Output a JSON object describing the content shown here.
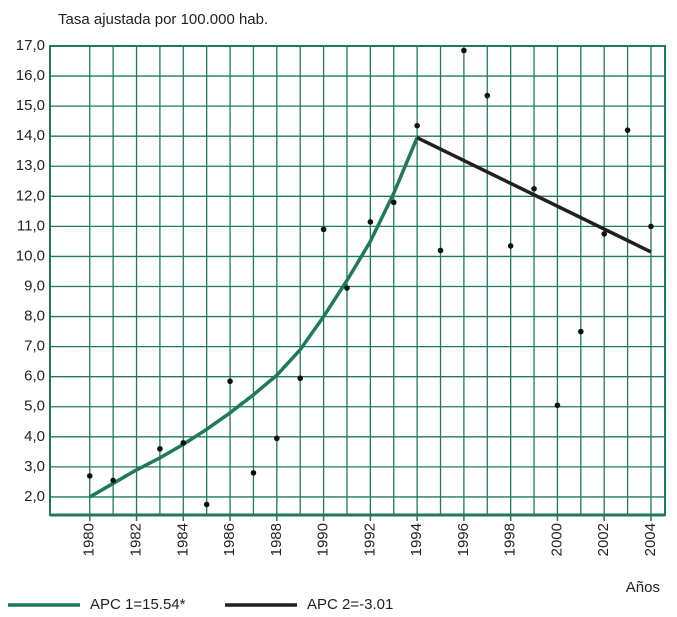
{
  "chart_data": {
    "type": "scatter",
    "ylabel": "Tasa ajustada por 100.000 hab.",
    "xlabel": "Años",
    "xlim": [
      1978.3,
      2004.6
    ],
    "ylim": [
      1.4,
      17.0
    ],
    "xticks": [
      1980,
      1982,
      1984,
      1986,
      1988,
      1990,
      1992,
      1994,
      1996,
      1998,
      2000,
      2002,
      2004
    ],
    "xminorticks": [
      1981,
      1983,
      1985,
      1987,
      1989,
      1991,
      1993,
      1995,
      1997,
      1999,
      2001,
      2003
    ],
    "yticks": [
      {
        "value": 2,
        "label": "2,0"
      },
      {
        "value": 3,
        "label": "3,0"
      },
      {
        "value": 4,
        "label": "4,0"
      },
      {
        "value": 5,
        "label": "5,0"
      },
      {
        "value": 6,
        "label": "6,0"
      },
      {
        "value": 7,
        "label": "7,0"
      },
      {
        "value": 8,
        "label": "8,0"
      },
      {
        "value": 9,
        "label": "9,0"
      },
      {
        "value": 10,
        "label": "10,0"
      },
      {
        "value": 11,
        "label": "11,0"
      },
      {
        "value": 12,
        "label": "12,0"
      },
      {
        "value": 13,
        "label": "13,0"
      },
      {
        "value": 14,
        "label": "14,0"
      },
      {
        "value": 15,
        "label": "15,0"
      },
      {
        "value": 16,
        "label": "16,0"
      },
      {
        "value": 17,
        "label": "17,0"
      }
    ],
    "grid": true,
    "points": {
      "color": "#111111",
      "x": [
        1980,
        1981,
        1983,
        1984,
        1985,
        1986,
        1987,
        1988,
        1989,
        1990,
        1991,
        1992,
        1993,
        1994,
        1995,
        1996,
        1997,
        1998,
        1999,
        2000,
        2001,
        2002,
        2003,
        2004
      ],
      "values": [
        2.7,
        2.55,
        3.6,
        3.8,
        1.75,
        5.85,
        2.8,
        3.95,
        5.95,
        10.9,
        8.95,
        11.15,
        11.8,
        14.35,
        10.2,
        16.85,
        15.35,
        10.35,
        12.25,
        5.05,
        7.5,
        10.75,
        14.2,
        11.0
      ]
    },
    "series": [
      {
        "name": "APC 1=15.54*",
        "color": "#1f7a5c",
        "x": [
          1980,
          1981,
          1982,
          1983,
          1984,
          1985,
          1986,
          1987,
          1988,
          1989,
          1990,
          1991,
          1992,
          1993,
          1994
        ],
        "values": [
          2.0,
          2.45,
          2.9,
          3.3,
          3.75,
          4.25,
          4.8,
          5.4,
          6.05,
          6.9,
          8.0,
          9.2,
          10.5,
          12.1,
          13.95
        ]
      },
      {
        "name": "APC 2=-3.01",
        "color": "#231f20",
        "x": [
          1994,
          2004
        ],
        "values": [
          13.95,
          10.15
        ]
      }
    ]
  }
}
